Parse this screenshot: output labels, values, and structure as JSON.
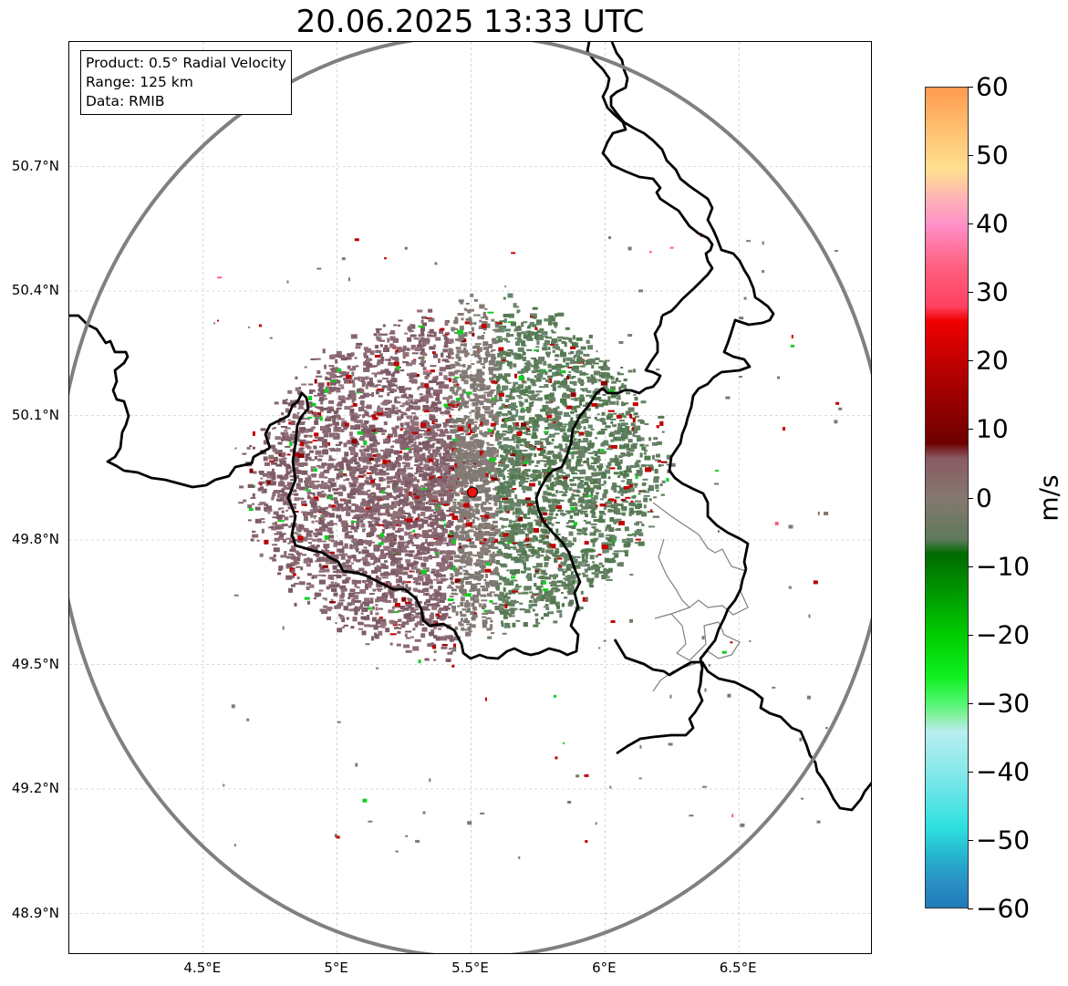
{
  "title": "20.06.2025 13:33 UTC",
  "info_box": {
    "product": "Product: 0.5° Radial Velocity",
    "range": "Range: 125 km",
    "data": "Data: RMIB"
  },
  "map": {
    "lon_range": [
      4.0,
      7.0
    ],
    "lat_range": [
      48.8,
      51.0
    ],
    "radar_site": {
      "lon": 5.505,
      "lat": 49.915,
      "color": "#ee1111"
    },
    "range_ring_km": 125,
    "x_tick_labels": [
      "4.5°E",
      "5°E",
      "5.5°E",
      "6°E",
      "6.5°E"
    ],
    "x_tick_values": [
      4.5,
      5.0,
      5.5,
      6.0,
      6.5
    ],
    "y_tick_labels": [
      "50.7°N",
      "50.4°N",
      "50.1°N",
      "49.8°N",
      "49.5°N",
      "49.2°N",
      "48.9°N"
    ],
    "y_tick_values": [
      50.7,
      50.4,
      50.1,
      49.8,
      49.5,
      49.2,
      48.9
    ],
    "grid": true,
    "ring_color": "#808080",
    "border_color": "#000000",
    "region_border_color": "#808080"
  },
  "colorbar": {
    "unit": "m/s",
    "min": -60,
    "max": 60,
    "tick_labels": [
      "60",
      "50",
      "40",
      "30",
      "20",
      "10",
      "0",
      "−10",
      "−20",
      "−30",
      "−40",
      "−50",
      "−60"
    ],
    "tick_values": [
      60,
      50,
      40,
      30,
      20,
      10,
      0,
      -10,
      -20,
      -30,
      -40,
      -50,
      -60
    ],
    "stops": [
      {
        "v": -60,
        "c": "#1f78b4"
      },
      {
        "v": -56,
        "c": "#2a8fc6"
      },
      {
        "v": -52,
        "c": "#26b5cf"
      },
      {
        "v": -48,
        "c": "#2ee0e0"
      },
      {
        "v": -40,
        "c": "#85e8ea"
      },
      {
        "v": -34,
        "c": "#b8eef0"
      },
      {
        "v": -32,
        "c": "#8cf0a8"
      },
      {
        "v": -30,
        "c": "#55f575"
      },
      {
        "v": -26,
        "c": "#10f020"
      },
      {
        "v": -20,
        "c": "#00cc00"
      },
      {
        "v": -14,
        "c": "#009a00"
      },
      {
        "v": -8,
        "c": "#006a00"
      },
      {
        "v": -6,
        "c": "#5c7a5a"
      },
      {
        "v": 0,
        "c": "#857870"
      },
      {
        "v": 6,
        "c": "#8a5a62"
      },
      {
        "v": 8,
        "c": "#6e0000"
      },
      {
        "v": 14,
        "c": "#950000"
      },
      {
        "v": 20,
        "c": "#c00000"
      },
      {
        "v": 26,
        "c": "#f00000"
      },
      {
        "v": 28,
        "c": "#ff4060"
      },
      {
        "v": 34,
        "c": "#ff6080"
      },
      {
        "v": 40,
        "c": "#ff90c8"
      },
      {
        "v": 44,
        "c": "#ffb4b4"
      },
      {
        "v": 48,
        "c": "#ffe090"
      },
      {
        "v": 54,
        "c": "#ffc070"
      },
      {
        "v": 60,
        "c": "#ff9a50"
      }
    ]
  }
}
